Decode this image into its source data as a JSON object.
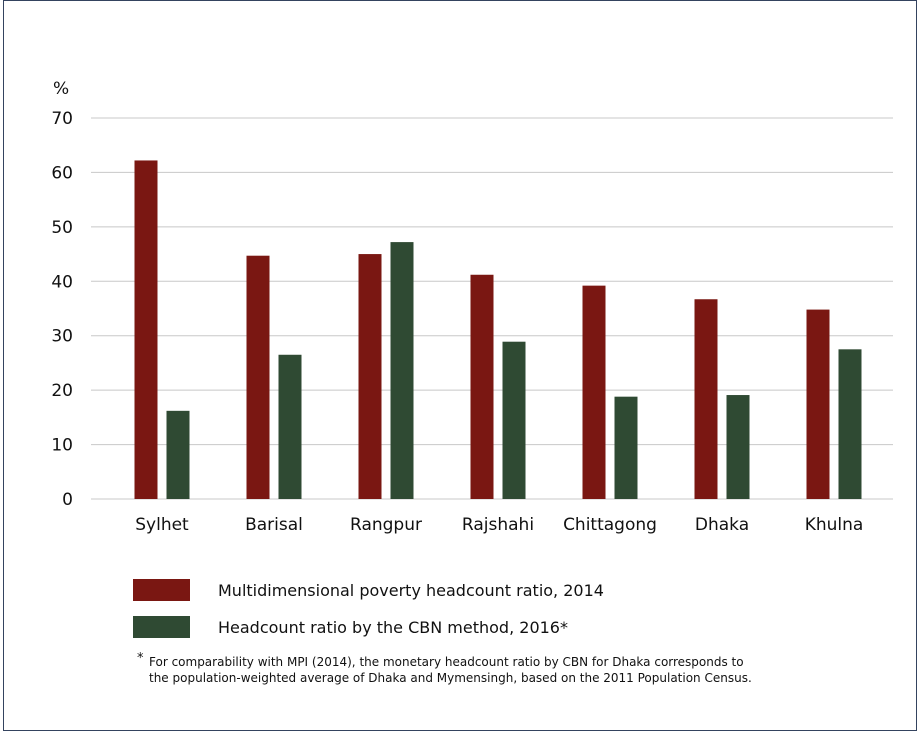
{
  "colors": {
    "series1": "#7a1712",
    "series2": "#2f4a33",
    "grid": "#c8c8c8",
    "frame": "#34435f"
  },
  "chart_data": {
    "type": "bar",
    "ylabel": "%",
    "ylim": [
      0,
      70
    ],
    "yticks": [
      "0",
      "10",
      "20",
      "30",
      "40",
      "50",
      "60",
      "70"
    ],
    "grid": true,
    "categories": [
      "Sylhet",
      "Barisal",
      "Rangpur",
      "Rajshahi",
      "Chittagong",
      "Dhaka",
      "Khulna"
    ],
    "series": [
      {
        "name": "Multidimensional poverty headcount ratio, 2014",
        "values": [
          62.2,
          44.7,
          45.0,
          41.2,
          39.2,
          36.7,
          34.8
        ]
      },
      {
        "name": "Headcount ratio by the CBN method, 2016*",
        "values": [
          16.2,
          26.5,
          47.2,
          28.9,
          18.8,
          19.1,
          27.5
        ]
      }
    ]
  },
  "legend": {
    "item1": "Multidimensional poverty headcount ratio, 2014",
    "item2": "Headcount ratio by the CBN method, 2016*"
  },
  "footnote": {
    "star": "*",
    "line1": "For comparability with MPI (2014), the monetary headcount ratio by CBN for Dhaka corresponds to",
    "line2": "the population-weighted average of Dhaka and Mymensingh, based on the 2011 Population Census."
  }
}
